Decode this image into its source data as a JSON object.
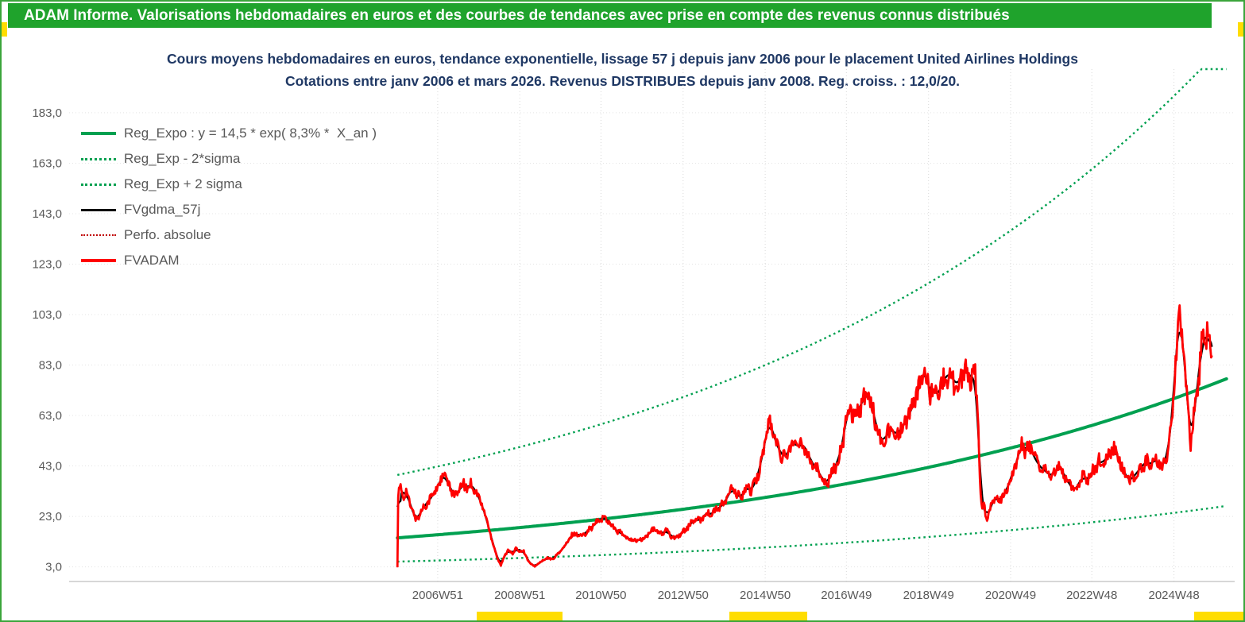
{
  "colors": {
    "banner_green": "#1FA32C",
    "border_green": "#3BA53B",
    "accent_yellow": "#FFDD00",
    "trend_green": "#00A050",
    "fvadam_red": "#FF0000",
    "perfo_dark_red": "#C00000",
    "smooth_black": "#000000",
    "title_navy": "#1F3864",
    "axis_gray": "#595959",
    "grid_gray": "#D9D9D9"
  },
  "header": {
    "title": "ADAM Informe. Valorisations hebdomadaires en euros et des courbes de tendances avec prise en compte des revenus connus distribués"
  },
  "chart_data": {
    "type": "line",
    "title": "Cours moyens hebdomadaires en euros, tendance exponentielle, lissage 57 j depuis janv 2006 pour le placement United Airlines Holdings",
    "subtitle": "Cotations entre janv 2006 et mars 2026. Revenus DISTRIBUES depuis janv 2008. Reg. croiss. : 12,0/20.",
    "legend_position": "upper-left-inside",
    "grid": true,
    "legend": [
      {
        "label": "Reg_Expo : y = 14,5 * exp( 8,3% *  X_an )",
        "style": "solid-thick",
        "color": "#00A050"
      },
      {
        "label": "Reg_Exp - 2*sigma",
        "style": "dotted",
        "color": "#00A050"
      },
      {
        "label": "Reg_Exp + 2 sigma",
        "style": "dotted",
        "color": "#00A050"
      },
      {
        "label": "FVgdma_57j",
        "style": "solid",
        "color": "#000000"
      },
      {
        "label": "Perfo. absolue",
        "style": "dotted",
        "color": "#C00000"
      },
      {
        "label": "FVADAM",
        "style": "solid-thick",
        "color": "#FF0000"
      }
    ],
    "y_ticks": [
      {
        "label": "183,0",
        "value": 183
      },
      {
        "label": "163,0",
        "value": 163
      },
      {
        "label": "143,0",
        "value": 143
      },
      {
        "label": "123,0",
        "value": 123
      },
      {
        "label": "103,0",
        "value": 103
      },
      {
        "label": "83,0",
        "value": 83
      },
      {
        "label": "63,0",
        "value": 63
      },
      {
        "label": "43,0",
        "value": 43
      },
      {
        "label": "23,0",
        "value": 23
      },
      {
        "label": "3,0",
        "value": 3
      }
    ],
    "x_ticks": [
      {
        "label": "2006W51",
        "year": 2006.98
      },
      {
        "label": "2008W51",
        "year": 2008.98
      },
      {
        "label": "2010W50",
        "year": 2010.96
      },
      {
        "label": "2012W50",
        "year": 2012.96
      },
      {
        "label": "2014W50",
        "year": 2014.96
      },
      {
        "label": "2016W49",
        "year": 2016.94
      },
      {
        "label": "2018W49",
        "year": 2018.94
      },
      {
        "label": "2020W49",
        "year": 2020.94
      },
      {
        "label": "2022W48",
        "year": 2022.92
      },
      {
        "label": "2024W48",
        "year": 2024.92
      }
    ],
    "x_domain_years": [
      1998.0,
      2026.4
    ],
    "y_axis_range": [
      -2.8,
      200.3
    ],
    "regression": {
      "formula_label": "Reg_Expo : y = 14,5 * exp( 8,3% *  X_an )",
      "base_eur": 14.5,
      "annual_rate_pct": 8.3,
      "start_year": 2006.0,
      "end_year": 2026.2,
      "lower_band_factor": 0.35,
      "upper_band_factor": 2.72
    },
    "weekly_noise_pct": 5.5,
    "series": {
      "FVADAM": {
        "name": "FVADAM",
        "unit": "EUR",
        "points": [
          [
            2006.0,
            3
          ],
          [
            2006.02,
            32
          ],
          [
            2006.08,
            34
          ],
          [
            2006.15,
            31
          ],
          [
            2006.22,
            33
          ],
          [
            2006.3,
            28
          ],
          [
            2006.4,
            24
          ],
          [
            2006.45,
            21.5
          ],
          [
            2006.55,
            24
          ],
          [
            2006.65,
            27
          ],
          [
            2006.75,
            29
          ],
          [
            2006.85,
            31
          ],
          [
            2006.95,
            34
          ],
          [
            2007.05,
            37
          ],
          [
            2007.12,
            40
          ],
          [
            2007.2,
            37
          ],
          [
            2007.3,
            34
          ],
          [
            2007.4,
            31
          ],
          [
            2007.5,
            33
          ],
          [
            2007.6,
            36
          ],
          [
            2007.7,
            34
          ],
          [
            2007.8,
            36
          ],
          [
            2007.9,
            33
          ],
          [
            2007.97,
            31
          ],
          [
            2008.05,
            28
          ],
          [
            2008.15,
            23
          ],
          [
            2008.25,
            17
          ],
          [
            2008.35,
            11
          ],
          [
            2008.45,
            6
          ],
          [
            2008.52,
            3.5
          ],
          [
            2008.6,
            7
          ],
          [
            2008.7,
            10
          ],
          [
            2008.8,
            8
          ],
          [
            2008.9,
            10.5
          ],
          [
            2008.97,
            9
          ],
          [
            2009.05,
            10
          ],
          [
            2009.15,
            6.5
          ],
          [
            2009.25,
            4
          ],
          [
            2009.35,
            3.2
          ],
          [
            2009.45,
            4.5
          ],
          [
            2009.55,
            5.5
          ],
          [
            2009.65,
            6.5
          ],
          [
            2009.75,
            6
          ],
          [
            2009.85,
            7
          ],
          [
            2009.95,
            9
          ],
          [
            2010.05,
            10.5
          ],
          [
            2010.15,
            13
          ],
          [
            2010.25,
            15.5
          ],
          [
            2010.35,
            16.5
          ],
          [
            2010.45,
            15
          ],
          [
            2010.55,
            16
          ],
          [
            2010.65,
            17.5
          ],
          [
            2010.75,
            19
          ],
          [
            2010.85,
            20.5
          ],
          [
            2010.95,
            22
          ],
          [
            2011.05,
            22.5
          ],
          [
            2011.15,
            21
          ],
          [
            2011.25,
            19
          ],
          [
            2011.35,
            17
          ],
          [
            2011.45,
            16.5
          ],
          [
            2011.55,
            15
          ],
          [
            2011.62,
            13.5
          ],
          [
            2011.7,
            14.5
          ],
          [
            2011.8,
            13
          ],
          [
            2011.9,
            14
          ],
          [
            2011.97,
            13.5
          ],
          [
            2012.05,
            15
          ],
          [
            2012.15,
            16.5
          ],
          [
            2012.25,
            18
          ],
          [
            2012.35,
            17
          ],
          [
            2012.45,
            16
          ],
          [
            2012.55,
            17.5
          ],
          [
            2012.65,
            15.5
          ],
          [
            2012.75,
            14.5
          ],
          [
            2012.85,
            15.5
          ],
          [
            2012.95,
            16.5
          ],
          [
            2013.05,
            18.5
          ],
          [
            2013.15,
            20
          ],
          [
            2013.25,
            22
          ],
          [
            2013.35,
            21
          ],
          [
            2013.45,
            23
          ],
          [
            2013.55,
            24.5
          ],
          [
            2013.65,
            23.5
          ],
          [
            2013.75,
            25.5
          ],
          [
            2013.85,
            26.5
          ],
          [
            2013.95,
            28
          ],
          [
            2014.05,
            31
          ],
          [
            2014.15,
            34
          ],
          [
            2014.25,
            32
          ],
          [
            2014.35,
            30
          ],
          [
            2014.45,
            33
          ],
          [
            2014.55,
            35
          ],
          [
            2014.62,
            32.5
          ],
          [
            2014.7,
            36
          ],
          [
            2014.8,
            40
          ],
          [
            2014.9,
            48
          ],
          [
            2014.97,
            54
          ],
          [
            2015.03,
            58
          ],
          [
            2015.08,
            61
          ],
          [
            2015.15,
            56
          ],
          [
            2015.25,
            51
          ],
          [
            2015.35,
            48
          ],
          [
            2015.45,
            46
          ],
          [
            2015.55,
            50
          ],
          [
            2015.65,
            53
          ],
          [
            2015.75,
            50
          ],
          [
            2015.85,
            52
          ],
          [
            2015.95,
            50
          ],
          [
            2016.05,
            46
          ],
          [
            2016.15,
            43
          ],
          [
            2016.25,
            41
          ],
          [
            2016.35,
            38
          ],
          [
            2016.45,
            36
          ],
          [
            2016.55,
            39
          ],
          [
            2016.65,
            42
          ],
          [
            2016.75,
            46
          ],
          [
            2016.85,
            52
          ],
          [
            2016.95,
            64
          ],
          [
            2017.05,
            66
          ],
          [
            2017.15,
            63
          ],
          [
            2017.25,
            66
          ],
          [
            2017.35,
            69
          ],
          [
            2017.45,
            72
          ],
          [
            2017.55,
            68
          ],
          [
            2017.65,
            60
          ],
          [
            2017.75,
            54
          ],
          [
            2017.85,
            53
          ],
          [
            2017.95,
            56
          ],
          [
            2018.05,
            58
          ],
          [
            2018.15,
            55
          ],
          [
            2018.25,
            57
          ],
          [
            2018.35,
            60
          ],
          [
            2018.45,
            63
          ],
          [
            2018.55,
            66
          ],
          [
            2018.65,
            71
          ],
          [
            2018.75,
            76
          ],
          [
            2018.85,
            82
          ],
          [
            2018.95,
            72
          ],
          [
            2019.05,
            74
          ],
          [
            2019.15,
            70
          ],
          [
            2019.25,
            75
          ],
          [
            2019.35,
            78
          ],
          [
            2019.45,
            80
          ],
          [
            2019.55,
            77
          ],
          [
            2019.65,
            75
          ],
          [
            2019.75,
            79
          ],
          [
            2019.85,
            81
          ],
          [
            2019.95,
            79
          ],
          [
            2020.02,
            77
          ],
          [
            2020.08,
            79
          ],
          [
            2020.15,
            60
          ],
          [
            2020.2,
            35
          ],
          [
            2020.25,
            25
          ],
          [
            2020.3,
            28
          ],
          [
            2020.35,
            22
          ],
          [
            2020.45,
            26
          ],
          [
            2020.55,
            31
          ],
          [
            2020.65,
            29
          ],
          [
            2020.75,
            31
          ],
          [
            2020.85,
            33
          ],
          [
            2020.92,
            38
          ],
          [
            2021.0,
            40
          ],
          [
            2021.05,
            43
          ],
          [
            2021.15,
            48
          ],
          [
            2021.2,
            52
          ],
          [
            2021.3,
            49
          ],
          [
            2021.4,
            51
          ],
          [
            2021.5,
            47
          ],
          [
            2021.6,
            44
          ],
          [
            2021.7,
            42
          ],
          [
            2021.8,
            41
          ],
          [
            2021.9,
            39
          ],
          [
            2022.0,
            40
          ],
          [
            2022.1,
            43
          ],
          [
            2022.2,
            41
          ],
          [
            2022.3,
            38
          ],
          [
            2022.4,
            35
          ],
          [
            2022.5,
            33
          ],
          [
            2022.6,
            36
          ],
          [
            2022.7,
            39
          ],
          [
            2022.8,
            37
          ],
          [
            2022.9,
            40
          ],
          [
            2023.0,
            42
          ],
          [
            2023.1,
            45
          ],
          [
            2023.2,
            44
          ],
          [
            2023.3,
            47
          ],
          [
            2023.45,
            50
          ],
          [
            2023.55,
            47
          ],
          [
            2023.65,
            43
          ],
          [
            2023.75,
            39
          ],
          [
            2023.85,
            37
          ],
          [
            2023.95,
            39
          ],
          [
            2024.05,
            41
          ],
          [
            2024.15,
            43
          ],
          [
            2024.25,
            45
          ],
          [
            2024.35,
            43
          ],
          [
            2024.45,
            46
          ],
          [
            2024.55,
            44
          ],
          [
            2024.65,
            42
          ],
          [
            2024.72,
            46
          ],
          [
            2024.8,
            52
          ],
          [
            2024.88,
            62
          ],
          [
            2024.95,
            85
          ],
          [
            2025.02,
            95
          ],
          [
            2025.06,
            104
          ],
          [
            2025.1,
            96
          ],
          [
            2025.15,
            90
          ],
          [
            2025.2,
            80
          ],
          [
            2025.25,
            68
          ],
          [
            2025.3,
            58
          ],
          [
            2025.33,
            52
          ],
          [
            2025.4,
            62
          ],
          [
            2025.45,
            70
          ],
          [
            2025.5,
            75
          ],
          [
            2025.55,
            82
          ],
          [
            2025.6,
            95
          ],
          [
            2025.65,
            90
          ],
          [
            2025.7,
            93
          ],
          [
            2025.75,
            99
          ],
          [
            2025.8,
            90
          ],
          [
            2025.85,
            86
          ]
        ]
      },
      "FVgdma_57j": {
        "name": "FVgdma_57j",
        "derived": "57-day (9-week) centered moving average of FVADAM"
      },
      "Perfo_absolue": {
        "name": "Perfo. absolue",
        "derived": "same trajectory as FVADAM, dotted dark red"
      }
    }
  }
}
